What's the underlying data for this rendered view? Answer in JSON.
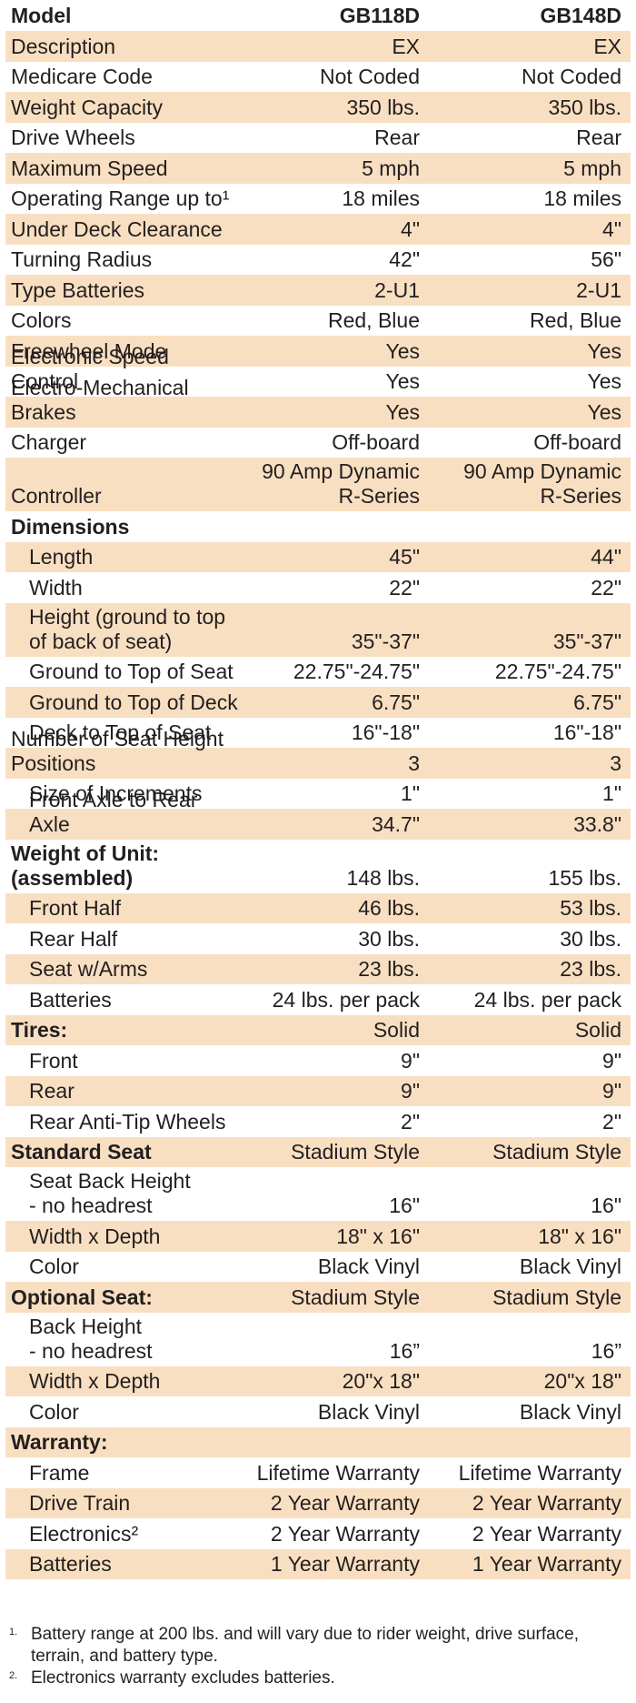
{
  "header": {
    "label": "Model",
    "col1": "GB118D",
    "col2": "GB148D"
  },
  "rows": [
    {
      "label": "Description",
      "v1": "EX",
      "v2": "EX",
      "tint": true
    },
    {
      "label": "Medicare Code",
      "v1": "Not Coded",
      "v2": "Not Coded",
      "tint": false
    },
    {
      "label": "Weight Capacity",
      "v1": "350 lbs.",
      "v2": "350 lbs.",
      "tint": true
    },
    {
      "label": "Drive Wheels",
      "v1": "Rear",
      "v2": "Rear",
      "tint": false
    },
    {
      "label": "Maximum Speed",
      "v1": "5 mph",
      "v2": "5 mph",
      "tint": true
    },
    {
      "label": "Operating Range up to¹",
      "v1": "18 miles",
      "v2": "18 miles",
      "tint": false
    },
    {
      "label": "Under Deck Clearance",
      "v1": "4\"",
      "v2": "4\"",
      "tint": true
    },
    {
      "label": "Turning Radius",
      "v1": "42\"",
      "v2": "56\"",
      "tint": false
    },
    {
      "label": "Type Batteries",
      "v1": "2-U1",
      "v2": "2-U1",
      "tint": true
    },
    {
      "label": "Colors",
      "v1": "Red, Blue",
      "v2": "Red, Blue",
      "tint": false
    },
    {
      "label": "Freewheel Mode",
      "v1": "Yes",
      "v2": "Yes",
      "tint": true
    },
    {
      "label": "Electronic Speed Control",
      "v1": "Yes",
      "v2": "Yes",
      "tint": false
    },
    {
      "label": "Electro-Mechanical Brakes",
      "v1": "Yes",
      "v2": "Yes",
      "tint": true
    },
    {
      "label": "Charger",
      "v1": "Off-board",
      "v2": "Off-board",
      "tint": false
    },
    {
      "label": "Controller",
      "v1": "90 Amp Dynamic\nR-Series",
      "v2": "90 Amp Dynamic\nR-Series",
      "tint": true,
      "tall": true
    },
    {
      "label": "Dimensions",
      "v1": "",
      "v2": "",
      "tint": false,
      "bold": true
    },
    {
      "label": "Length",
      "v1": "45\"",
      "v2": "44\"",
      "tint": true,
      "indent": true
    },
    {
      "label": "Width",
      "v1": "22\"",
      "v2": "22\"",
      "tint": false,
      "indent": true
    },
    {
      "label": "Height (ground to top\nof back of seat)",
      "v1": "35\"-37\"",
      "v2": "35\"-37\"",
      "tint": true,
      "indent": true,
      "tall": true
    },
    {
      "label": "Ground to Top of Seat",
      "v1": "22.75\"-24.75\"",
      "v2": "22.75\"-24.75\"",
      "tint": false,
      "indent": true
    },
    {
      "label": "Ground to Top of Deck",
      "v1": "6.75\"",
      "v2": "6.75\"",
      "tint": true,
      "indent": true
    },
    {
      "label": "Deck to Top of Seat",
      "v1": "16\"-18\"",
      "v2": "16\"-18\"",
      "tint": false,
      "indent": true
    },
    {
      "label": "Number of Seat Height Positions",
      "v1": "3",
      "v2": "3",
      "tint": true
    },
    {
      "label": "Size of Increments",
      "v1": "1\"",
      "v2": "1\"",
      "tint": false,
      "indent": true
    },
    {
      "label": "Front Axle to Rear Axle",
      "v1": "34.7\"",
      "v2": "33.8\"",
      "tint": true,
      "indent": true
    },
    {
      "label": "Weight of Unit:\n(assembled)",
      "v1": "148 lbs.",
      "v2": "155 lbs.",
      "tint": false,
      "bold": true,
      "tall": true
    },
    {
      "label": "Front Half",
      "v1": "46 lbs.",
      "v2": "53 lbs.",
      "tint": true,
      "indent": true
    },
    {
      "label": "Rear Half",
      "v1": "30 lbs.",
      "v2": "30 lbs.",
      "tint": false,
      "indent": true
    },
    {
      "label": "Seat w/Arms",
      "v1": "23 lbs.",
      "v2": "23 lbs.",
      "tint": true,
      "indent": true
    },
    {
      "label": "Batteries",
      "v1": "24 lbs. per pack",
      "v2": "24 lbs. per pack",
      "tint": false,
      "indent": true
    },
    {
      "label": "Tires:",
      "v1": "Solid",
      "v2": "Solid",
      "tint": true,
      "bold": true
    },
    {
      "label": "Front",
      "v1": "9\"",
      "v2": "9\"",
      "tint": false,
      "indent": true
    },
    {
      "label": "Rear",
      "v1": "9\"",
      "v2": "9\"",
      "tint": true,
      "indent": true
    },
    {
      "label": "Rear Anti-Tip Wheels",
      "v1": "2\"",
      "v2": "2\"",
      "tint": false,
      "indent": true
    },
    {
      "label": "Standard Seat",
      "v1": "Stadium Style",
      "v2": "Stadium Style",
      "tint": true,
      "bold": true
    },
    {
      "label": "Seat Back Height\n- no headrest",
      "v1": "16\"",
      "v2": "16\"",
      "tint": false,
      "indent": true,
      "tall": true
    },
    {
      "label": "Width x Depth",
      "v1": "18\" x 16\"",
      "v2": "18\" x 16\"",
      "tint": true,
      "indent": true
    },
    {
      "label": "Color",
      "v1": "Black Vinyl",
      "v2": "Black Vinyl",
      "tint": false,
      "indent": true
    },
    {
      "label": "Optional Seat:",
      "v1": "Stadium Style",
      "v2": "Stadium Style",
      "tint": true,
      "bold": true
    },
    {
      "label": "Back Height\n- no headrest",
      "v1": "16”",
      "v2": "16”",
      "tint": false,
      "indent": true,
      "tall": true
    },
    {
      "label": "Width x Depth",
      "v1": "20\"x 18\"",
      "v2": "20\"x 18\"",
      "tint": true,
      "indent": true
    },
    {
      "label": "Color",
      "v1": "Black Vinyl",
      "v2": "Black Vinyl",
      "tint": false,
      "indent": true
    },
    {
      "label": "Warranty:",
      "v1": "",
      "v2": "",
      "tint": true,
      "bold": true
    },
    {
      "label": "Frame",
      "v1": "Lifetime Warranty",
      "v2": "Lifetime Warranty",
      "tint": false,
      "indent": true
    },
    {
      "label": "Drive Train",
      "v1": "2 Year Warranty",
      "v2": "2 Year Warranty",
      "tint": true,
      "indent": true
    },
    {
      "label": "Electronics²",
      "v1": "2 Year Warranty",
      "v2": "2 Year Warranty",
      "tint": false,
      "indent": true
    },
    {
      "label": "Batteries",
      "v1": "1 Year Warranty",
      "v2": "1 Year Warranty",
      "tint": true,
      "indent": true
    }
  ],
  "notes": [
    {
      "mark": "1.",
      "text": "Battery range at 200 lbs. and will vary due to rider weight, drive surface, terrain, and battery type."
    },
    {
      "mark": "2.",
      "text": "Electronics warranty excludes batteries."
    }
  ]
}
